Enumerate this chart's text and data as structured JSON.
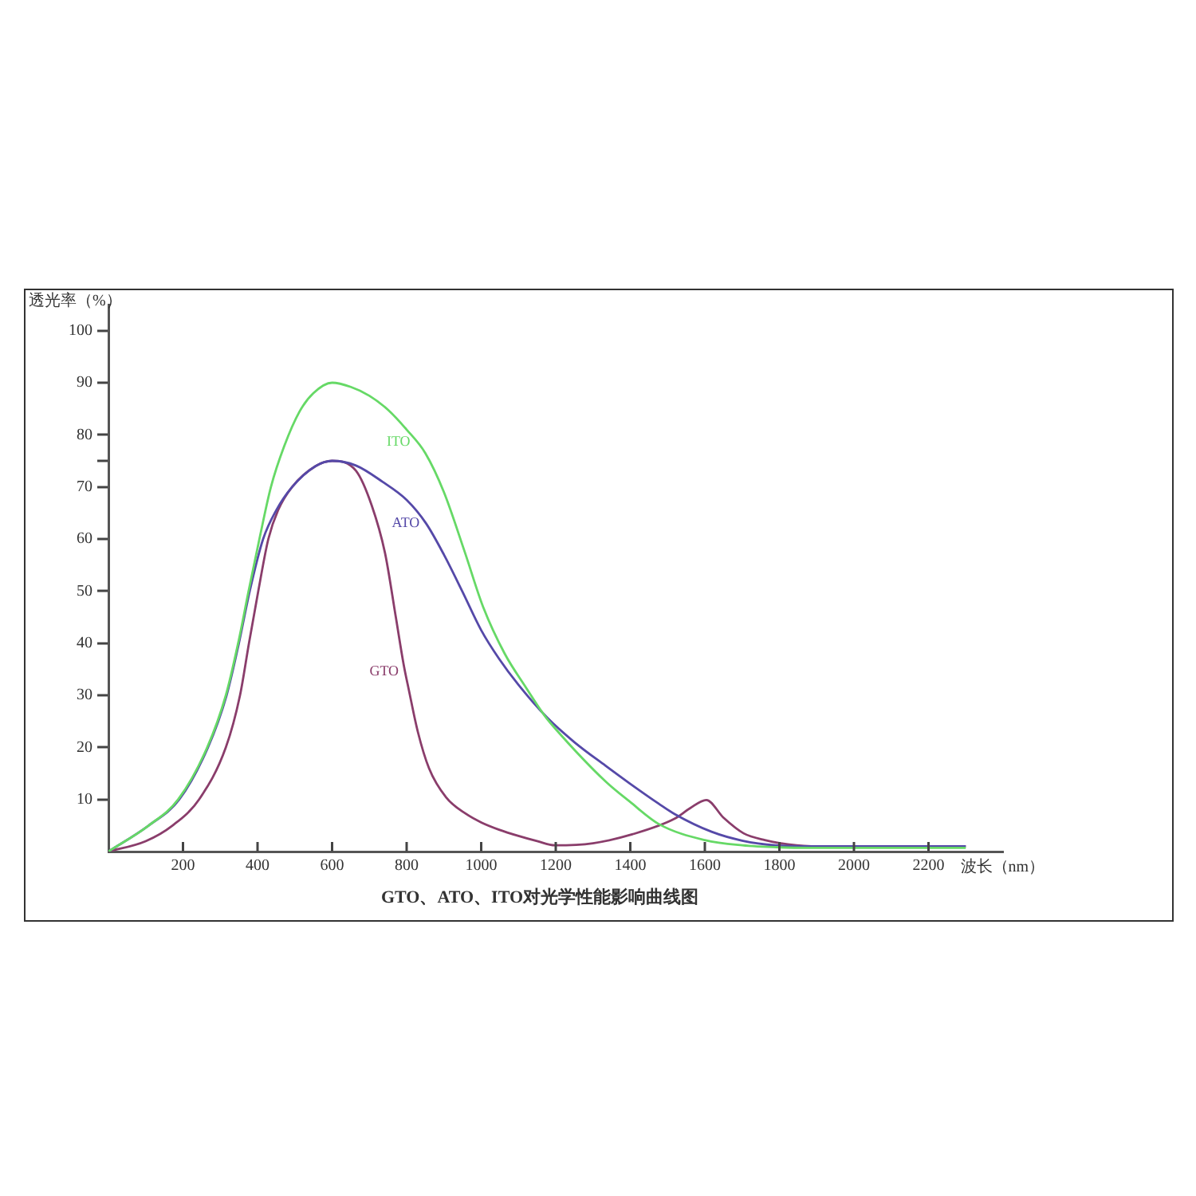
{
  "chart_data": {
    "type": "line",
    "title": "GTO、ATO、ITO对光学性能影响曲线图",
    "xlabel": "波长（nm）",
    "ylabel": "透光率（%）",
    "xlim": [
      0,
      2400
    ],
    "xticks": [
      200,
      400,
      600,
      800,
      1000,
      1200,
      1400,
      1600,
      1800,
      2000,
      2200
    ],
    "ylim": [
      0,
      105
    ],
    "yticks": [
      10,
      20,
      30,
      40,
      50,
      60,
      70,
      {
        "value": 75,
        "label": null
      },
      80,
      90,
      100
    ],
    "legend": false,
    "marker": "none",
    "line_style": "solid",
    "series": [
      {
        "name": "ITO",
        "color": "#66d966",
        "x": [
          0,
          108,
          187,
          265,
          315,
          348,
          376,
          405,
          436,
          471,
          513,
          550,
          600,
          650,
          700,
          750,
          800,
          850,
          900,
          956,
          1005,
          1063,
          1120,
          1169,
          1200,
          1333,
          1400,
          1476,
          1600,
          1700,
          1800,
          1900,
          2300
        ],
        "values": [
          0,
          5,
          10,
          20,
          30,
          40,
          50,
          60,
          70,
          77.7,
          84.5,
          88,
          90,
          89.2,
          87.5,
          84.8,
          81,
          76.5,
          69,
          57.5,
          47,
          38,
          31.5,
          26.2,
          23.5,
          13.5,
          9.5,
          5.3,
          2.2,
          1.2,
          0.8,
          0.7,
          0.7
        ]
      },
      {
        "name": "ATO",
        "color": "#5549a8",
        "x": [
          0,
          108,
          190,
          267,
          317,
          350,
          379,
          415,
          450,
          493,
          556,
          600,
          664,
          735,
          800,
          852,
          900,
          949,
          1000,
          1048,
          1100,
          1177,
          1250,
          1333,
          1400,
          1476,
          1519,
          1618,
          1700,
          1789,
          1900,
          2300
        ],
        "values": [
          0,
          5,
          10,
          20,
          30,
          40,
          50,
          60,
          65.5,
          70,
          74,
          75,
          74.1,
          71,
          67.5,
          63,
          57,
          50,
          42.5,
          37,
          32,
          25.7,
          21,
          16.5,
          13,
          9.2,
          7.2,
          3.8,
          2.1,
          1.2,
          1,
          1
        ]
      },
      {
        "name": "GTO",
        "color": "#8a3d6b",
        "x": [
          0,
          100,
          172,
          243,
          315,
          353,
          377,
          402,
          429,
          455,
          493,
          556,
          600,
          664,
          706,
          742,
          771,
          792,
          806,
          830,
          860,
          906,
          960,
          1000,
          1048,
          1100,
          1150,
          1198,
          1300,
          1405,
          1519,
          1560,
          1604,
          1650,
          1704,
          1761,
          1846,
          1900,
          2300
        ],
        "values": [
          0,
          2,
          5,
          10,
          20,
          30,
          40,
          50,
          60,
          65.5,
          70,
          74,
          75,
          73.1,
          66.5,
          57.3,
          45,
          35.9,
          31,
          23,
          16,
          10.4,
          7.2,
          5.6,
          4.2,
          3,
          2,
          1.2,
          1.6,
          3.3,
          6.3,
          8.3,
          9.9,
          6.5,
          3.5,
          2.2,
          1.2,
          1,
          1
        ]
      }
    ]
  }
}
